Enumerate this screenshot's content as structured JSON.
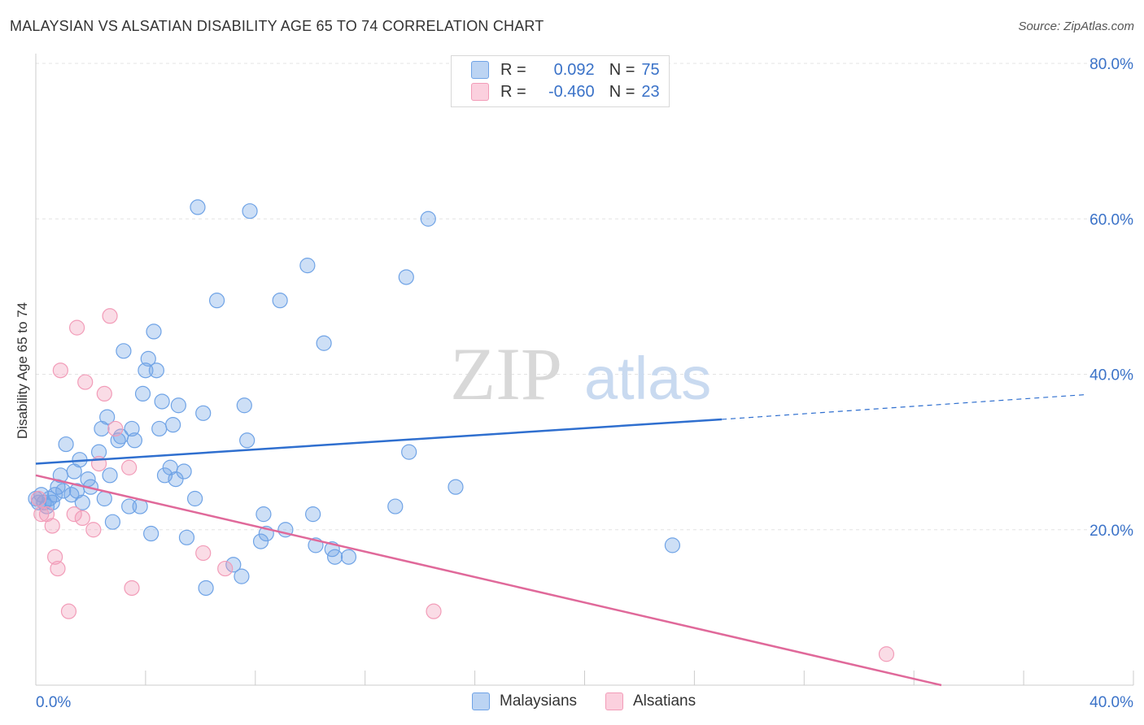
{
  "title": "MALAYSIAN VS ALSATIAN DISABILITY AGE 65 TO 74 CORRELATION CHART",
  "source": "Source: ZipAtlas.com",
  "watermark": {
    "zip": "ZIP",
    "atlas": "atlas"
  },
  "legend": {
    "rows": [
      {
        "r_label": "R =",
        "r_value": "0.092",
        "n_label": "N =",
        "n_value": "75"
      },
      {
        "r_label": "R =",
        "r_value": "-0.460",
        "n_label": "N =",
        "n_value": "23"
      }
    ]
  },
  "chart_data": {
    "type": "scatter",
    "title": "MALAYSIAN VS ALSATIAN DISABILITY AGE 65 TO 74 CORRELATION CHART",
    "xlabel": "",
    "ylabel": "Disability Age 65 to 74",
    "xlim": [
      0,
      40
    ],
    "ylim": [
      0,
      80
    ],
    "x_tick_labels": [
      "0.0%",
      "40.0%"
    ],
    "y_ticks": [
      20,
      40,
      60,
      80
    ],
    "y_tick_labels": [
      "20.0%",
      "40.0%",
      "60.0%",
      "80.0%"
    ],
    "grid": true,
    "colors": {
      "malaysians": "#6fa3e6",
      "alsatians": "#f29cb8",
      "blue_line": "#2f6fcf",
      "pink_line": "#e0699a",
      "tick_label": "#3a72c8"
    },
    "series": [
      {
        "name": "Malaysians",
        "points": [
          [
            0.1,
            23.5
          ],
          [
            0.2,
            24.5
          ],
          [
            0.3,
            23.5
          ],
          [
            0.4,
            23.0
          ],
          [
            0.5,
            24.0
          ],
          [
            0.6,
            23.5
          ],
          [
            0.7,
            24.5
          ],
          [
            0.8,
            25.5
          ],
          [
            0.9,
            27.0
          ],
          [
            1.0,
            25.0
          ],
          [
            1.1,
            31.0
          ],
          [
            1.3,
            24.5
          ],
          [
            1.4,
            27.5
          ],
          [
            1.5,
            25.0
          ],
          [
            1.6,
            29.0
          ],
          [
            1.7,
            23.5
          ],
          [
            1.9,
            26.5
          ],
          [
            2.0,
            25.5
          ],
          [
            2.3,
            30.0
          ],
          [
            2.4,
            33.0
          ],
          [
            2.5,
            24.0
          ],
          [
            2.6,
            34.5
          ],
          [
            2.7,
            27.0
          ],
          [
            2.8,
            21.0
          ],
          [
            3.0,
            31.5
          ],
          [
            3.1,
            32.0
          ],
          [
            3.2,
            43.0
          ],
          [
            3.4,
            23.0
          ],
          [
            3.5,
            33.0
          ],
          [
            3.6,
            31.5
          ],
          [
            3.8,
            23.0
          ],
          [
            3.9,
            37.5
          ],
          [
            4.0,
            40.5
          ],
          [
            4.1,
            42.0
          ],
          [
            4.2,
            19.5
          ],
          [
            4.3,
            45.5
          ],
          [
            4.4,
            40.5
          ],
          [
            4.5,
            33.0
          ],
          [
            4.6,
            36.5
          ],
          [
            4.7,
            27.0
          ],
          [
            4.9,
            28.0
          ],
          [
            5.0,
            33.5
          ],
          [
            5.1,
            26.5
          ],
          [
            5.2,
            36.0
          ],
          [
            5.4,
            27.5
          ],
          [
            5.5,
            19.0
          ],
          [
            5.8,
            24.0
          ],
          [
            5.9,
            61.5
          ],
          [
            6.1,
            35.0
          ],
          [
            6.2,
            12.5
          ],
          [
            6.6,
            49.5
          ],
          [
            7.2,
            15.5
          ],
          [
            7.5,
            14.0
          ],
          [
            7.6,
            36.0
          ],
          [
            7.7,
            31.5
          ],
          [
            7.8,
            61.0
          ],
          [
            8.2,
            18.5
          ],
          [
            8.3,
            22.0
          ],
          [
            8.4,
            19.5
          ],
          [
            8.9,
            49.5
          ],
          [
            9.1,
            20.0
          ],
          [
            9.9,
            54.0
          ],
          [
            10.1,
            22.0
          ],
          [
            10.2,
            18.0
          ],
          [
            10.5,
            44.0
          ],
          [
            10.8,
            17.5
          ],
          [
            10.9,
            16.5
          ],
          [
            11.4,
            16.5
          ],
          [
            13.1,
            23.0
          ],
          [
            13.5,
            52.5
          ],
          [
            13.6,
            30.0
          ],
          [
            14.3,
            60.0
          ],
          [
            15.3,
            25.5
          ],
          [
            23.2,
            18.0
          ],
          [
            0.0,
            24.0
          ]
        ],
        "trend": {
          "x": [
            0,
            25
          ],
          "y": [
            28.5,
            34.2
          ],
          "dashed_to": [
            40,
            37.8
          ]
        }
      },
      {
        "name": "Alsatians",
        "points": [
          [
            0.1,
            24.0
          ],
          [
            0.2,
            22.0
          ],
          [
            0.4,
            22.0
          ],
          [
            0.6,
            20.5
          ],
          [
            0.7,
            16.5
          ],
          [
            0.8,
            15.0
          ],
          [
            0.9,
            40.5
          ],
          [
            1.2,
            9.5
          ],
          [
            1.4,
            22.0
          ],
          [
            1.5,
            46.0
          ],
          [
            1.7,
            21.5
          ],
          [
            1.8,
            39.0
          ],
          [
            2.1,
            20.0
          ],
          [
            2.3,
            28.5
          ],
          [
            2.5,
            37.5
          ],
          [
            2.7,
            47.5
          ],
          [
            2.9,
            33.0
          ],
          [
            3.4,
            28.0
          ],
          [
            3.5,
            12.5
          ],
          [
            6.1,
            17.0
          ],
          [
            6.9,
            15.0
          ],
          [
            14.5,
            9.5
          ],
          [
            31.0,
            4.0
          ]
        ],
        "trend": {
          "x": [
            0,
            33
          ],
          "y": [
            27.0,
            0.0
          ]
        }
      }
    ]
  },
  "bottom_legend": [
    {
      "label": "Malaysians"
    },
    {
      "label": "Alsatians"
    }
  ]
}
